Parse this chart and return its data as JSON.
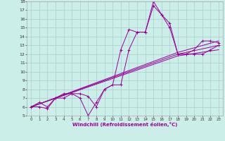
{
  "xlabel": "Windchill (Refroidissement éolien,°C)",
  "bg_color": "#cceee8",
  "grid_color": "#aacccc",
  "line_color": "#990099",
  "xlim": [
    -0.5,
    23.5
  ],
  "ylim": [
    5,
    18
  ],
  "xticks": [
    0,
    1,
    2,
    3,
    4,
    5,
    6,
    7,
    8,
    9,
    10,
    11,
    12,
    13,
    14,
    15,
    16,
    17,
    18,
    19,
    20,
    21,
    22,
    23
  ],
  "yticks": [
    5,
    6,
    7,
    8,
    9,
    10,
    11,
    12,
    13,
    14,
    15,
    16,
    17,
    18
  ],
  "lines": [
    {
      "x": [
        0,
        1,
        2,
        3,
        4,
        5,
        6,
        7,
        8,
        9,
        10,
        11,
        12,
        13,
        14,
        15,
        16,
        17,
        18,
        19,
        20,
        21,
        22,
        23
      ],
      "y": [
        6,
        6.5,
        6,
        7,
        7.5,
        7.5,
        7,
        5,
        6.5,
        8,
        8.5,
        12.5,
        14.8,
        14.5,
        14.5,
        18,
        16.5,
        15.0,
        12,
        12,
        12.5,
        13.5,
        13.5,
        13.3
      ],
      "marker": true
    },
    {
      "x": [
        0,
        1,
        2,
        3,
        4,
        5,
        6,
        7,
        8,
        9,
        10,
        11,
        12,
        13,
        14,
        15,
        16,
        17,
        18,
        19,
        20,
        21,
        22,
        23
      ],
      "y": [
        6,
        6,
        5.8,
        7,
        7,
        7.5,
        7.5,
        7.2,
        6,
        8,
        8.5,
        8.5,
        12.5,
        14.5,
        14.5,
        17.5,
        16.5,
        15.5,
        12,
        12,
        12,
        12,
        12.5,
        13
      ],
      "marker": true
    },
    {
      "x": [
        0,
        18,
        23
      ],
      "y": [
        6,
        12.0,
        13.0
      ],
      "marker": false
    },
    {
      "x": [
        0,
        18,
        23
      ],
      "y": [
        6,
        12.2,
        13.5
      ],
      "marker": false
    },
    {
      "x": [
        0,
        18,
        23
      ],
      "y": [
        6,
        11.8,
        12.5
      ],
      "marker": false
    }
  ]
}
